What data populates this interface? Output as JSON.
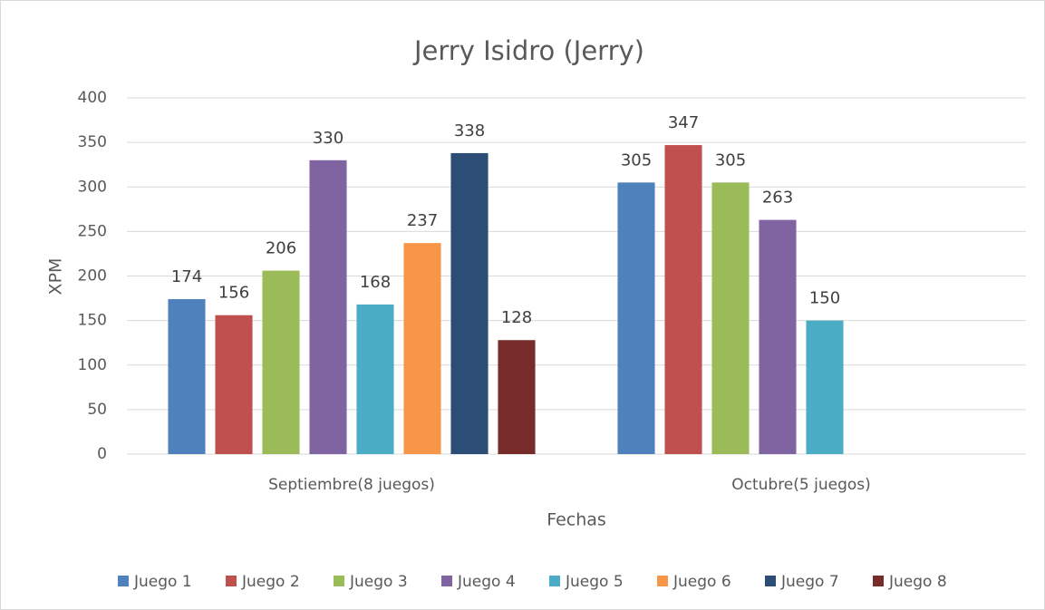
{
  "chart_data": {
    "type": "bar",
    "title": "Jerry Isidro (Jerry)",
    "x_label": "Fechas",
    "y_label": "XPM",
    "categories": [
      "Septiembre(8 juegos)",
      "Octubre(5 juegos)"
    ],
    "series": [
      {
        "name": "Juego 1",
        "color": "#4f81bd",
        "values": [
          174,
          305
        ]
      },
      {
        "name": "Juego 2",
        "color": "#c0504d",
        "values": [
          156,
          347
        ]
      },
      {
        "name": "Juego 3",
        "color": "#9bbb59",
        "values": [
          206,
          305
        ]
      },
      {
        "name": "Juego 4",
        "color": "#8064a2",
        "values": [
          330,
          263
        ]
      },
      {
        "name": "Juego 5",
        "color": "#4bacc6",
        "values": [
          168,
          150
        ]
      },
      {
        "name": "Juego 6",
        "color": "#f79646",
        "values": [
          237,
          null
        ]
      },
      {
        "name": "Juego 7",
        "color": "#2c4d75",
        "values": [
          338,
          null
        ]
      },
      {
        "name": "Juego 8",
        "color": "#772c2a",
        "values": [
          128,
          null
        ]
      }
    ],
    "ylim": [
      0,
      400
    ],
    "yticks": [
      0,
      50,
      100,
      150,
      200,
      250,
      300,
      350,
      400
    ],
    "grid": true,
    "legend": "bottom"
  }
}
